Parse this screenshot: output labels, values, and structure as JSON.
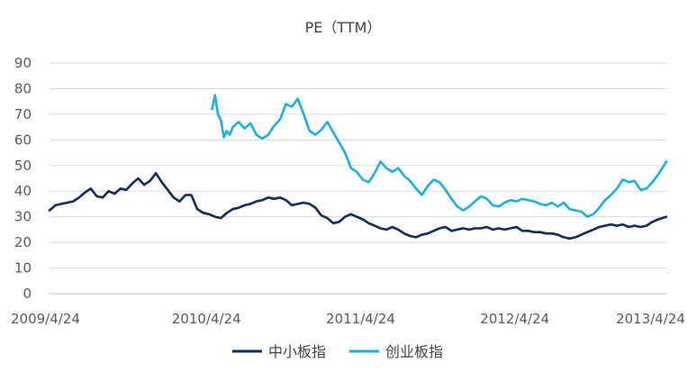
{
  "chart_data": {
    "type": "line",
    "title": "PE（TTM）",
    "xlabel": "",
    "ylabel": "",
    "ylim": [
      0,
      90
    ],
    "yticks": [
      0,
      10,
      20,
      30,
      40,
      50,
      60,
      70,
      80,
      90
    ],
    "xticks": [
      "2009/4/24",
      "2010/4/24",
      "2011/4/24",
      "2012/4/24",
      "2013/4/24"
    ],
    "xrange": [
      "2009-04-24",
      "2013-04-24"
    ],
    "grid": true,
    "legend_position": "bottom",
    "series": [
      {
        "name": "中小板指",
        "color": "#0b2a5c",
        "points": [
          [
            "2009-04-24",
            32.5
          ],
          [
            "2009-05-08",
            34.5
          ],
          [
            "2009-05-22",
            35.0
          ],
          [
            "2009-06-05",
            35.5
          ],
          [
            "2009-06-19",
            36.0
          ],
          [
            "2009-07-03",
            37.5
          ],
          [
            "2009-07-17",
            39.5
          ],
          [
            "2009-07-31",
            41.0
          ],
          [
            "2009-08-14",
            38.0
          ],
          [
            "2009-08-28",
            37.5
          ],
          [
            "2009-09-11",
            40.0
          ],
          [
            "2009-09-25",
            39.0
          ],
          [
            "2009-10-09",
            41.0
          ],
          [
            "2009-10-23",
            40.5
          ],
          [
            "2009-11-06",
            43.0
          ],
          [
            "2009-11-20",
            45.0
          ],
          [
            "2009-12-04",
            42.5
          ],
          [
            "2009-12-18",
            44.0
          ],
          [
            "2010-01-01",
            47.0
          ],
          [
            "2010-01-15",
            43.5
          ],
          [
            "2010-01-29",
            40.5
          ],
          [
            "2010-02-12",
            37.5
          ],
          [
            "2010-02-26",
            36.0
          ],
          [
            "2010-03-12",
            38.5
          ],
          [
            "2010-03-26",
            38.5
          ],
          [
            "2010-04-09",
            33.0
          ],
          [
            "2010-04-23",
            31.5
          ],
          [
            "2010-05-07",
            31.0
          ],
          [
            "2010-05-21",
            30.0
          ],
          [
            "2010-06-04",
            29.5
          ],
          [
            "2010-06-18",
            31.5
          ],
          [
            "2010-07-02",
            33.0
          ],
          [
            "2010-07-16",
            33.5
          ],
          [
            "2010-07-30",
            34.5
          ],
          [
            "2010-08-13",
            35.0
          ],
          [
            "2010-08-27",
            36.0
          ],
          [
            "2010-09-10",
            36.5
          ],
          [
            "2010-09-24",
            37.5
          ],
          [
            "2010-10-08",
            37.0
          ],
          [
            "2010-10-22",
            37.5
          ],
          [
            "2010-11-05",
            36.5
          ],
          [
            "2010-11-19",
            34.5
          ],
          [
            "2010-12-03",
            35.0
          ],
          [
            "2010-12-17",
            35.5
          ],
          [
            "2010-12-31",
            35.0
          ],
          [
            "2011-01-14",
            33.5
          ],
          [
            "2011-01-28",
            30.5
          ],
          [
            "2011-02-11",
            29.5
          ],
          [
            "2011-02-25",
            27.5
          ],
          [
            "2011-03-11",
            28.0
          ],
          [
            "2011-03-25",
            30.0
          ],
          [
            "2011-04-08",
            31.0
          ],
          [
            "2011-04-22",
            30.0
          ],
          [
            "2011-05-06",
            29.0
          ],
          [
            "2011-05-20",
            27.5
          ],
          [
            "2011-06-03",
            26.5
          ],
          [
            "2011-06-17",
            25.5
          ],
          [
            "2011-07-01",
            25.0
          ],
          [
            "2011-07-15",
            26.0
          ],
          [
            "2011-07-29",
            25.0
          ],
          [
            "2011-08-12",
            23.5
          ],
          [
            "2011-08-26",
            22.5
          ],
          [
            "2011-09-09",
            22.0
          ],
          [
            "2011-09-23",
            23.0
          ],
          [
            "2011-10-07",
            23.5
          ],
          [
            "2011-10-21",
            24.5
          ],
          [
            "2011-11-04",
            25.5
          ],
          [
            "2011-11-18",
            26.0
          ],
          [
            "2011-12-02",
            24.5
          ],
          [
            "2011-12-16",
            25.0
          ],
          [
            "2011-12-30",
            25.5
          ],
          [
            "2012-01-13",
            25.0
          ],
          [
            "2012-01-27",
            25.5
          ],
          [
            "2012-02-10",
            25.5
          ],
          [
            "2012-02-24",
            26.0
          ],
          [
            "2012-03-09",
            25.0
          ],
          [
            "2012-03-23",
            25.5
          ],
          [
            "2012-04-06",
            25.0
          ],
          [
            "2012-04-20",
            25.5
          ],
          [
            "2012-05-04",
            26.0
          ],
          [
            "2012-05-18",
            24.5
          ],
          [
            "2012-06-01",
            24.5
          ],
          [
            "2012-06-15",
            24.0
          ],
          [
            "2012-06-29",
            24.0
          ],
          [
            "2012-07-13",
            23.5
          ],
          [
            "2012-07-27",
            23.5
          ],
          [
            "2012-08-10",
            23.0
          ],
          [
            "2012-08-24",
            22.0
          ],
          [
            "2012-09-07",
            21.5
          ],
          [
            "2012-09-21",
            22.0
          ],
          [
            "2012-10-05",
            23.0
          ],
          [
            "2012-10-19",
            24.0
          ],
          [
            "2012-11-02",
            25.0
          ],
          [
            "2012-11-16",
            26.0
          ],
          [
            "2012-11-30",
            26.5
          ],
          [
            "2012-12-14",
            27.0
          ],
          [
            "2012-12-28",
            26.5
          ],
          [
            "2013-01-11",
            27.0
          ],
          [
            "2013-01-25",
            26.0
          ],
          [
            "2013-02-08",
            26.5
          ],
          [
            "2013-02-22",
            26.0
          ],
          [
            "2013-03-08",
            26.5
          ],
          [
            "2013-03-22",
            28.0
          ],
          [
            "2013-04-05",
            29.0
          ],
          [
            "2013-04-24",
            30.0
          ]
        ]
      },
      {
        "name": "创业板指",
        "color": "#1aafe6",
        "points": [
          [
            "2010-05-14",
            72.0
          ],
          [
            "2010-05-21",
            77.5
          ],
          [
            "2010-05-28",
            70.0
          ],
          [
            "2010-06-04",
            67.5
          ],
          [
            "2010-06-11",
            61.0
          ],
          [
            "2010-06-18",
            63.5
          ],
          [
            "2010-06-25",
            62.0
          ],
          [
            "2010-07-02",
            65.0
          ],
          [
            "2010-07-16",
            67.0
          ],
          [
            "2010-07-30",
            64.5
          ],
          [
            "2010-08-13",
            66.5
          ],
          [
            "2010-08-27",
            62.0
          ],
          [
            "2010-09-10",
            60.5
          ],
          [
            "2010-09-24",
            62.0
          ],
          [
            "2010-10-08",
            65.5
          ],
          [
            "2010-10-22",
            68.0
          ],
          [
            "2010-11-05",
            74.0
          ],
          [
            "2010-11-19",
            73.0
          ],
          [
            "2010-12-03",
            76.0
          ],
          [
            "2010-12-17",
            70.0
          ],
          [
            "2010-12-31",
            63.5
          ],
          [
            "2011-01-14",
            62.0
          ],
          [
            "2011-01-28",
            64.0
          ],
          [
            "2011-02-11",
            67.0
          ],
          [
            "2011-02-25",
            63.0
          ],
          [
            "2011-03-11",
            59.0
          ],
          [
            "2011-03-25",
            55.0
          ],
          [
            "2011-04-08",
            49.0
          ],
          [
            "2011-04-22",
            47.5
          ],
          [
            "2011-05-06",
            44.5
          ],
          [
            "2011-05-20",
            43.5
          ],
          [
            "2011-06-03",
            47.0
          ],
          [
            "2011-06-17",
            51.5
          ],
          [
            "2011-07-01",
            49.0
          ],
          [
            "2011-07-15",
            47.5
          ],
          [
            "2011-07-29",
            49.0
          ],
          [
            "2011-08-12",
            46.0
          ],
          [
            "2011-08-26",
            44.0
          ],
          [
            "2011-09-09",
            41.0
          ],
          [
            "2011-09-23",
            38.5
          ],
          [
            "2011-10-07",
            42.0
          ],
          [
            "2011-10-21",
            44.5
          ],
          [
            "2011-11-04",
            43.5
          ],
          [
            "2011-11-18",
            40.5
          ],
          [
            "2011-12-02",
            37.0
          ],
          [
            "2011-12-16",
            34.0
          ],
          [
            "2011-12-30",
            32.5
          ],
          [
            "2012-01-13",
            34.0
          ],
          [
            "2012-01-27",
            36.0
          ],
          [
            "2012-02-10",
            38.0
          ],
          [
            "2012-02-24",
            37.0
          ],
          [
            "2012-03-09",
            34.5
          ],
          [
            "2012-03-23",
            34.0
          ],
          [
            "2012-04-06",
            35.5
          ],
          [
            "2012-04-20",
            36.5
          ],
          [
            "2012-05-04",
            36.0
          ],
          [
            "2012-05-18",
            37.0
          ],
          [
            "2012-06-01",
            36.5
          ],
          [
            "2012-06-15",
            36.0
          ],
          [
            "2012-06-29",
            35.0
          ],
          [
            "2012-07-13",
            34.5
          ],
          [
            "2012-07-27",
            35.5
          ],
          [
            "2012-08-10",
            34.0
          ],
          [
            "2012-08-24",
            35.5
          ],
          [
            "2012-09-07",
            33.0
          ],
          [
            "2012-09-21",
            32.5
          ],
          [
            "2012-10-05",
            32.0
          ],
          [
            "2012-10-19",
            30.0
          ],
          [
            "2012-11-02",
            31.0
          ],
          [
            "2012-11-16",
            33.5
          ],
          [
            "2012-11-30",
            36.5
          ],
          [
            "2012-12-14",
            38.5
          ],
          [
            "2012-12-28",
            41.0
          ],
          [
            "2013-01-11",
            44.5
          ],
          [
            "2013-01-25",
            43.5
          ],
          [
            "2013-02-08",
            44.0
          ],
          [
            "2013-02-22",
            40.5
          ],
          [
            "2013-03-08",
            41.0
          ],
          [
            "2013-03-22",
            43.5
          ],
          [
            "2013-04-05",
            46.5
          ],
          [
            "2013-04-24",
            51.5
          ]
        ]
      }
    ]
  }
}
